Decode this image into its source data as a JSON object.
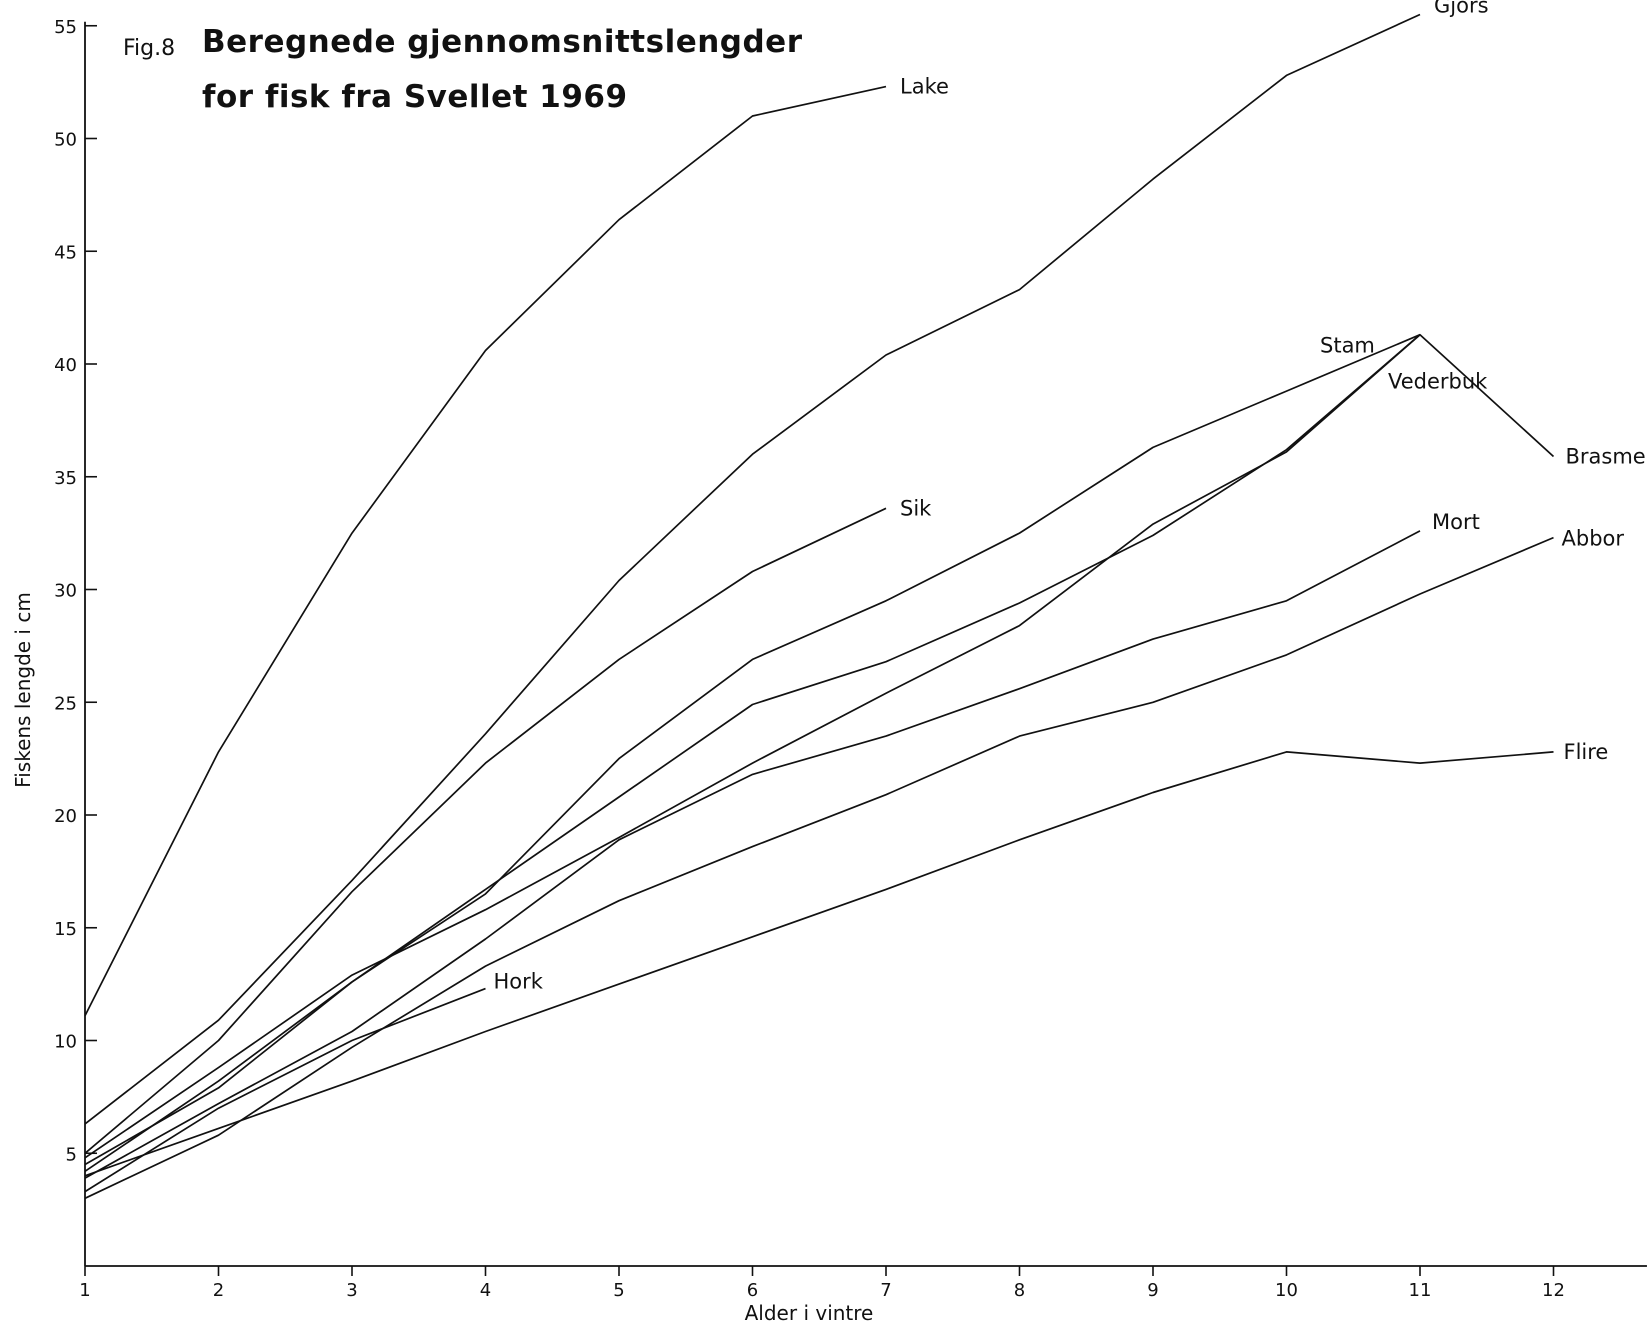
{
  "chart_data": {
    "type": "line",
    "fig_label": "Fig.8",
    "title_line1": "Beregnede gjennomsnittslengder",
    "title_line2": "for fisk fra Svellet 1969",
    "xlabel": "Alder i vintre",
    "ylabel": "Fiskens lengde i cm",
    "xlim": [
      1,
      12.7
    ],
    "ylim": [
      0,
      55
    ],
    "xticks": [
      1,
      2,
      3,
      4,
      5,
      6,
      7,
      8,
      9,
      10,
      11,
      12
    ],
    "yticks": [
      5,
      10,
      15,
      20,
      25,
      30,
      35,
      40,
      45,
      50,
      55
    ],
    "grid": false,
    "legend": "inline labels at line ends",
    "series": [
      {
        "name": "Lake",
        "x": [
          1,
          2,
          3,
          4,
          5,
          6,
          7
        ],
        "y": [
          11.1,
          22.8,
          32.5,
          40.6,
          46.4,
          51.0,
          52.3
        ]
      },
      {
        "name": "Gjörs",
        "x": [
          1,
          2,
          3,
          4,
          5,
          6,
          7,
          8,
          9,
          10,
          11
        ],
        "y": [
          6.3,
          10.9,
          17.1,
          23.6,
          30.4,
          36.0,
          40.4,
          43.3,
          48.2,
          52.8,
          55.5
        ]
      },
      {
        "name": "Sik",
        "x": [
          1,
          2,
          3,
          4,
          5,
          6,
          7
        ],
        "y": [
          5.0,
          10.0,
          16.6,
          22.3,
          26.9,
          30.8,
          33.6
        ]
      },
      {
        "name": "Stam",
        "x": [
          1,
          2,
          3,
          4,
          5,
          6,
          7,
          8,
          9,
          10,
          11
        ],
        "y": [
          4.8,
          8.8,
          12.9,
          15.8,
          19.0,
          22.3,
          25.4,
          28.4,
          32.9,
          36.1,
          41.3
        ]
      },
      {
        "name": "Vederbuk",
        "x": [
          1,
          2,
          3,
          4,
          5,
          6,
          7,
          8,
          9,
          10,
          11
        ],
        "y": [
          4.2,
          8.2,
          12.6,
          16.7,
          20.8,
          24.9,
          26.8,
          29.4,
          32.4,
          36.2,
          41.3
        ]
      },
      {
        "name": "Brasme",
        "x": [
          1,
          2,
          3,
          4,
          5,
          6,
          7,
          8,
          9,
          10,
          11,
          12
        ],
        "y": [
          4.5,
          7.9,
          12.6,
          16.5,
          22.5,
          26.9,
          29.5,
          32.5,
          36.3,
          38.8,
          41.3,
          35.9
        ]
      },
      {
        "name": "Mort",
        "x": [
          1,
          2,
          3,
          4,
          5,
          6,
          7,
          8,
          9,
          10,
          11
        ],
        "y": [
          3.9,
          7.2,
          10.4,
          14.5,
          18.9,
          21.8,
          23.5,
          25.6,
          27.8,
          29.5,
          32.6
        ]
      },
      {
        "name": "Abbor",
        "x": [
          1,
          2,
          3,
          4,
          5,
          6,
          7,
          8,
          9,
          10,
          11,
          12
        ],
        "y": [
          3.0,
          5.8,
          9.7,
          13.3,
          16.2,
          18.6,
          20.9,
          23.5,
          25.0,
          27.1,
          29.8,
          32.3
        ]
      },
      {
        "name": "Hork",
        "x": [
          1,
          2,
          3,
          4
        ],
        "y": [
          3.3,
          7.0,
          10.0,
          12.3
        ]
      },
      {
        "name": "Flire",
        "x": [
          1,
          2,
          3,
          4,
          5,
          6,
          7,
          8,
          9,
          10,
          11,
          12
        ],
        "y": [
          4.0,
          6.1,
          8.2,
          10.4,
          12.5,
          14.6,
          16.7,
          18.9,
          21.0,
          22.8,
          22.3,
          22.8
        ]
      }
    ]
  }
}
